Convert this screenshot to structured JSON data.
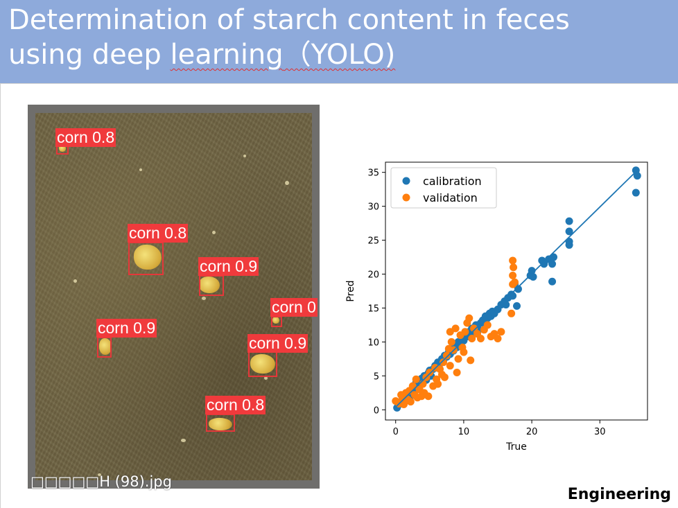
{
  "slide": {
    "title_line1": "Determination of starch content in feces",
    "title_line2_a": "using deep ",
    "title_line2_b": "learning",
    "title_line2_c": "（YOLO)",
    "footer_label": "Engineering",
    "accent_color": "#8eaadb"
  },
  "detection_image": {
    "filename": "□□□□□H (98).jpg",
    "box_color": "#e5373a",
    "detections": [
      {
        "label": "corn 0.8"
      },
      {
        "label": "corn 0.8"
      },
      {
        "label": "corn 0.9"
      },
      {
        "label": "corn 0"
      },
      {
        "label": "corn 0.9"
      },
      {
        "label": "corn 0.9"
      },
      {
        "label": "corn 0.8"
      }
    ]
  },
  "chart_data": {
    "type": "scatter",
    "xlabel": "True",
    "ylabel": "Pred",
    "xlim": [
      -1.5,
      37
    ],
    "ylim": [
      -1.5,
      36.5
    ],
    "xticks": [
      0,
      10,
      20,
      30
    ],
    "yticks": [
      0,
      5,
      10,
      15,
      20,
      25,
      30,
      35
    ],
    "legend_position": "top-left",
    "fit_line": {
      "x": [
        0,
        35.5
      ],
      "y": [
        0.4,
        35.3
      ],
      "color": "#1f77b4"
    },
    "series": [
      {
        "name": "calibration",
        "color": "#1f77b4",
        "points": [
          [
            0.2,
            0.3
          ],
          [
            0.5,
            0.8
          ],
          [
            0.8,
            1.2
          ],
          [
            1,
            1.5
          ],
          [
            1.2,
            1.0
          ],
          [
            1.5,
            1.8
          ],
          [
            1.8,
            2.2
          ],
          [
            2,
            2.5
          ],
          [
            2.2,
            2.0
          ],
          [
            2.5,
            3.0
          ],
          [
            2.8,
            3.5
          ],
          [
            3,
            4.0
          ],
          [
            3.2,
            3.2
          ],
          [
            3.5,
            4.2
          ],
          [
            3.8,
            4.6
          ],
          [
            4,
            4.0
          ],
          [
            4.2,
            5.0
          ],
          [
            4.5,
            4.4
          ],
          [
            4.8,
            5.4
          ],
          [
            5,
            5.8
          ],
          [
            5.2,
            5.0
          ],
          [
            5.5,
            6.0
          ],
          [
            5.8,
            6.5
          ],
          [
            6,
            6.2
          ],
          [
            6.2,
            7.0
          ],
          [
            6.5,
            6.8
          ],
          [
            6.8,
            7.5
          ],
          [
            7,
            7.2
          ],
          [
            7.2,
            8.0
          ],
          [
            7.5,
            7.8
          ],
          [
            7.8,
            8.5
          ],
          [
            8,
            8.2
          ],
          [
            8.2,
            9.0
          ],
          [
            8.5,
            8.7
          ],
          [
            8.8,
            9.5
          ],
          [
            9,
            9.2
          ],
          [
            9.2,
            10.0
          ],
          [
            9.5,
            9.8
          ],
          [
            9.8,
            10.5
          ],
          [
            10,
            10.2
          ],
          [
            10.2,
            11.0
          ],
          [
            10.5,
            10.8
          ],
          [
            10.8,
            11.5
          ],
          [
            11,
            11.2
          ],
          [
            11.2,
            12.0
          ],
          [
            11.5,
            11.8
          ],
          [
            11.8,
            12.5
          ],
          [
            12,
            12.3
          ],
          [
            12.2,
            11.8
          ],
          [
            12.5,
            12.8
          ],
          [
            12.8,
            13.2
          ],
          [
            13,
            12.9
          ],
          [
            13.2,
            13.8
          ],
          [
            13.5,
            13.5
          ],
          [
            13.8,
            14.2
          ],
          [
            14,
            13.8
          ],
          [
            14.2,
            14.5
          ],
          [
            14.5,
            14.2
          ],
          [
            15,
            14.8
          ],
          [
            15.5,
            15.5
          ],
          [
            16,
            16.0
          ],
          [
            16.2,
            15.5
          ],
          [
            16.5,
            16.5
          ],
          [
            17,
            17.0
          ],
          [
            17.2,
            16.8
          ],
          [
            17.5,
            18.5
          ],
          [
            17.8,
            15.3
          ],
          [
            18,
            17.8
          ],
          [
            19.8,
            19.8
          ],
          [
            20,
            20.5
          ],
          [
            20.2,
            19.6
          ],
          [
            21.5,
            22.0
          ],
          [
            21.8,
            21.5
          ],
          [
            22.5,
            22.2
          ],
          [
            23,
            21.5
          ],
          [
            23.2,
            22.5
          ],
          [
            23,
            18.9
          ],
          [
            25.5,
            27.8
          ],
          [
            25.5,
            26.3
          ],
          [
            25.5,
            24.8
          ],
          [
            25.5,
            24.3
          ],
          [
            35.3,
            35.3
          ],
          [
            35.5,
            34.5
          ],
          [
            35.3,
            32.0
          ]
        ]
      },
      {
        "name": "validation",
        "color": "#ff7f0e",
        "points": [
          [
            0,
            1.3
          ],
          [
            0.5,
            0.9
          ],
          [
            0.8,
            2.2
          ],
          [
            1,
            1.8
          ],
          [
            1.2,
            0.8
          ],
          [
            1.5,
            2.5
          ],
          [
            1.8,
            1.5
          ],
          [
            2,
            2.8
          ],
          [
            2.2,
            1.2
          ],
          [
            2.5,
            3.5
          ],
          [
            2.8,
            2.2
          ],
          [
            3,
            4.5
          ],
          [
            3.2,
            1.8
          ],
          [
            3.5,
            3.0
          ],
          [
            3.8,
            2.0
          ],
          [
            4,
            3.8
          ],
          [
            4.2,
            2.5
          ],
          [
            4.5,
            4.8
          ],
          [
            4.8,
            2.0
          ],
          [
            5,
            5.5
          ],
          [
            5.5,
            3.5
          ],
          [
            5.8,
            6.2
          ],
          [
            6,
            4.5
          ],
          [
            6.2,
            3.8
          ],
          [
            6.5,
            6.0
          ],
          [
            6.8,
            5.2
          ],
          [
            7,
            7.0
          ],
          [
            7.2,
            4.8
          ],
          [
            7.5,
            8.0
          ],
          [
            7.8,
            9.0
          ],
          [
            8,
            6.5
          ],
          [
            8.2,
            10.0
          ],
          [
            8.5,
            8.8
          ],
          [
            8.8,
            12.0
          ],
          [
            9,
            5.5
          ],
          [
            9.2,
            7.5
          ],
          [
            9.5,
            11.0
          ],
          [
            9.8,
            9.2
          ],
          [
            10,
            8.5
          ],
          [
            10.2,
            11.5
          ],
          [
            10.5,
            12.8
          ],
          [
            10.8,
            13.5
          ],
          [
            11,
            7.3
          ],
          [
            11.2,
            10.5
          ],
          [
            11.5,
            12.0
          ],
          [
            12,
            11.2
          ],
          [
            12.5,
            10.5
          ],
          [
            13,
            11.8
          ],
          [
            13.5,
            12.5
          ],
          [
            14,
            10.8
          ],
          [
            14.5,
            11.2
          ],
          [
            15,
            10.5
          ],
          [
            15.5,
            11.5
          ],
          [
            17,
            14.2
          ],
          [
            17.2,
            18.5
          ],
          [
            17.2,
            19.8
          ],
          [
            17.3,
            21.0
          ],
          [
            17.2,
            22.0
          ],
          [
            17.5,
            18.8
          ],
          [
            8,
            11.5
          ]
        ]
      }
    ]
  }
}
